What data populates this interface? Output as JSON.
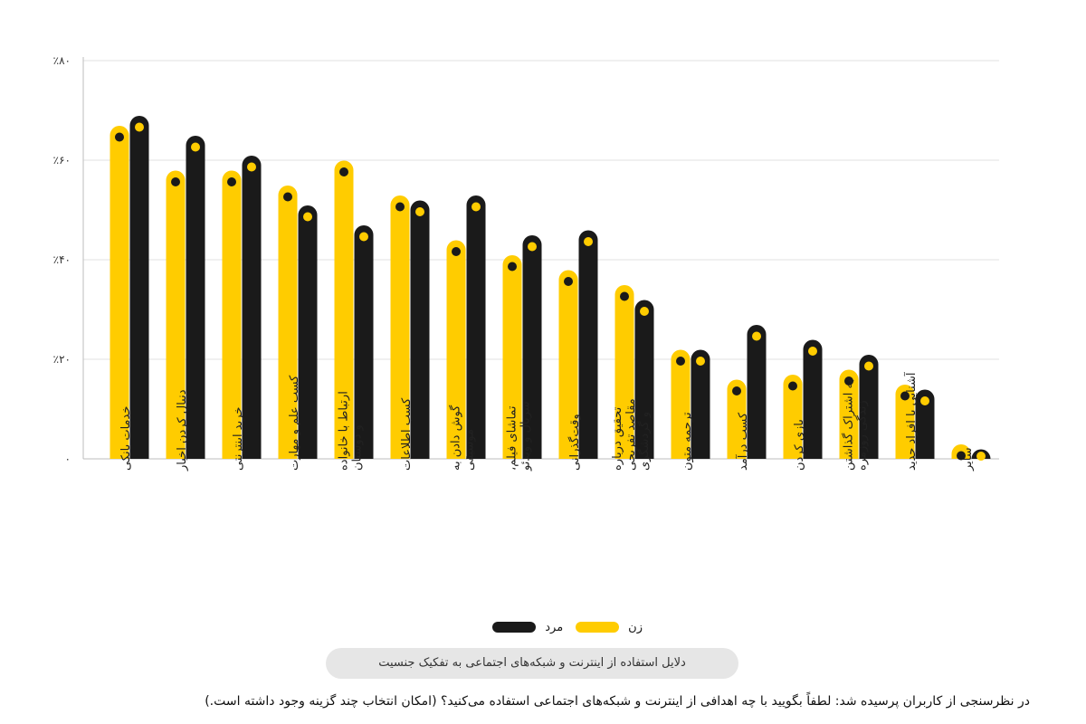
{
  "chart_data": {
    "type": "bar",
    "yticks": [
      "۰",
      "٪۲۰",
      "٪۴۰",
      "٪۶۰",
      "٪۸۰"
    ],
    "ylim": [
      0,
      80
    ],
    "grid": true,
    "categories": [
      [
        "خدمات بانکی"
      ],
      [
        "دنبال کردن اخبار"
      ],
      [
        "خرید اینترنتی"
      ],
      [
        "کسب علم و مهارت"
      ],
      [
        "ارتباط با خانواده",
        "و دوستان"
      ],
      [
        "کسب اطلاعات"
      ],
      [
        "گوش دادن به",
        "موسیقی"
      ],
      [
        "تماشای فیلم،",
        "سریال و ویدئو"
      ],
      [
        "وقت‌گذرانی"
      ],
      [
        "تحقیق درباره",
        "مقاصد تفریحی",
        "و گردشگری"
      ],
      [
        "ترجمه متون"
      ],
      [
        "کسب درآمد"
      ],
      [
        "بازی کردن"
      ],
      [
        "به اشتراک گذاشتن",
        "زندگی روزمره"
      ],
      [
        "آشنایی با افراد جدید"
      ],
      [
        "سایر"
      ]
    ],
    "series": [
      {
        "name": "زن",
        "color": "#FFCC00",
        "values": [
          65,
          56,
          56,
          53,
          58,
          51,
          42,
          39,
          36,
          33,
          20,
          14,
          15,
          16,
          13,
          1
        ]
      },
      {
        "name": "مرد",
        "color": "#1A1A1A",
        "values": [
          67,
          63,
          59,
          49,
          45,
          50,
          51,
          43,
          44,
          30,
          20,
          25,
          22,
          19,
          12,
          0
        ]
      }
    ],
    "legend_position": "bottom-center"
  },
  "legend": {
    "women": "زن",
    "men": "مرد"
  },
  "caption": "دلایل استفاده از اینترنت و شبکه‌های اجتماعی به تفکیک جنسیت",
  "question": "در نظرسنجی از کاربران پرسیده شد: لطفاً بگویید با چه اهدافی از اینترنت و شبکه‌های اجتماعی استفاده می‌کنید؟ (امکان انتخاب چند گزینه وجود داشته است.)"
}
